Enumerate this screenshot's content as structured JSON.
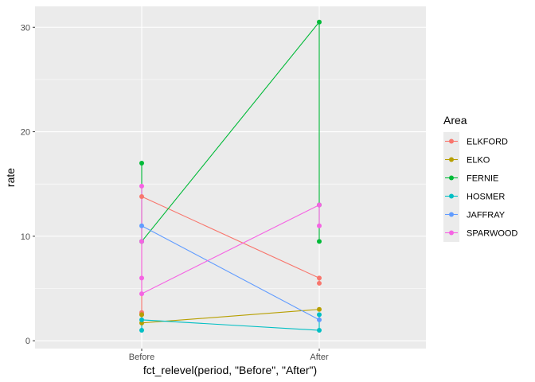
{
  "chart_data": {
    "type": "line",
    "xlabel": "fct_relevel(period, \"Before\", \"After\")",
    "ylabel": "rate",
    "categories": [
      "Before",
      "After"
    ],
    "ylim": [
      -0.75,
      32
    ],
    "yticks": [
      0,
      10,
      20,
      30
    ],
    "grid": true,
    "background": "#ebebeb",
    "legend": {
      "title": "Area",
      "placement": "right"
    },
    "series": [
      {
        "name": "ELKFORD",
        "color": "#f8766d",
        "points": [
          {
            "x": "Before",
            "y": 13.8
          },
          {
            "x": "Before",
            "y": 2.7
          },
          {
            "x": "Before",
            "y": 2.5
          },
          {
            "x": "After",
            "y": 6.0
          },
          {
            "x": "After",
            "y": 5.5
          }
        ],
        "path": [
          {
            "x": "Before",
            "y": 2.7
          },
          {
            "x": "Before",
            "y": 13.8
          },
          {
            "x": "After",
            "y": 6.0
          },
          {
            "x": "After",
            "y": 5.5
          }
        ]
      },
      {
        "name": "ELKO",
        "color": "#b79f00",
        "points": [
          {
            "x": "Before",
            "y": 1.7
          },
          {
            "x": "Before",
            "y": 2.5
          },
          {
            "x": "After",
            "y": 3.0
          }
        ],
        "path": [
          {
            "x": "Before",
            "y": 2.5
          },
          {
            "x": "Before",
            "y": 1.7
          },
          {
            "x": "After",
            "y": 3.0
          }
        ]
      },
      {
        "name": "FERNIE",
        "color": "#00ba38",
        "points": [
          {
            "x": "Before",
            "y": 17.0
          },
          {
            "x": "Before",
            "y": 9.5
          },
          {
            "x": "After",
            "y": 30.5
          },
          {
            "x": "After",
            "y": 13.0
          },
          {
            "x": "After",
            "y": 9.5
          }
        ],
        "path": [
          {
            "x": "Before",
            "y": 17.0
          },
          {
            "x": "Before",
            "y": 9.5
          },
          {
            "x": "After",
            "y": 30.5
          },
          {
            "x": "After",
            "y": 9.5
          }
        ]
      },
      {
        "name": "HOSMER",
        "color": "#00bfc4",
        "points": [
          {
            "x": "Before",
            "y": 2.0
          },
          {
            "x": "Before",
            "y": 1.0
          },
          {
            "x": "After",
            "y": 2.5
          },
          {
            "x": "After",
            "y": 1.0
          }
        ],
        "path": [
          {
            "x": "Before",
            "y": 1.0
          },
          {
            "x": "Before",
            "y": 2.0
          },
          {
            "x": "After",
            "y": 1.0
          },
          {
            "x": "After",
            "y": 2.5
          }
        ]
      },
      {
        "name": "JAFFRAY",
        "color": "#619cff",
        "points": [
          {
            "x": "Before",
            "y": 11.0
          },
          {
            "x": "After",
            "y": 2.0
          }
        ],
        "path": [
          {
            "x": "Before",
            "y": 11.0
          },
          {
            "x": "After",
            "y": 2.0
          }
        ]
      },
      {
        "name": "SPARWOOD",
        "color": "#f564e3",
        "points": [
          {
            "x": "Before",
            "y": 14.8
          },
          {
            "x": "Before",
            "y": 9.5
          },
          {
            "x": "Before",
            "y": 6.0
          },
          {
            "x": "Before",
            "y": 4.5
          },
          {
            "x": "After",
            "y": 13.0
          },
          {
            "x": "After",
            "y": 11.0
          }
        ],
        "path": [
          {
            "x": "Before",
            "y": 14.8
          },
          {
            "x": "Before",
            "y": 4.5
          },
          {
            "x": "After",
            "y": 13.0
          },
          {
            "x": "After",
            "y": 11.0
          }
        ]
      }
    ]
  }
}
